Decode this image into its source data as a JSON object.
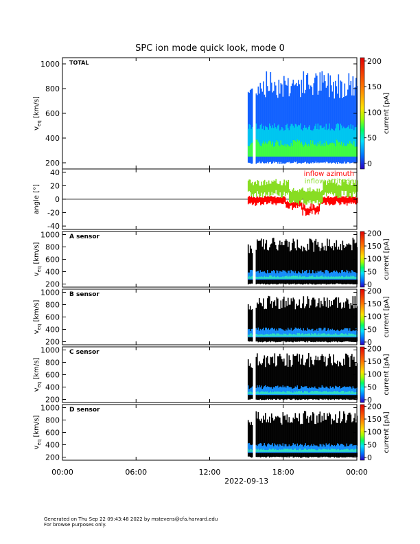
{
  "chart_data": {
    "type": "heatmap",
    "title": "SPC ion mode quick look, mode 0",
    "x_ticks": [
      "00:00",
      "06:00",
      "12:00",
      "18:00",
      "00:00"
    ],
    "x_hours": [
      0,
      6,
      12,
      18,
      24
    ],
    "xlabel": "2022-09-13",
    "data_start_hour": 15.1,
    "data_gap_hours": [
      15.45,
      15.75
    ],
    "vel_ylabel": "v_eq [km/s]",
    "vel_ylabel_main": "v",
    "vel_ylabel_sub": "eq",
    "vel_ylabel_unit": "[km/s]",
    "colorbar_label": "current [pA]",
    "colorbar_range": [
      0,
      200
    ],
    "panels": [
      {
        "label": "TOTAL",
        "ylim": [
          150,
          1050
        ],
        "yticks": [
          200,
          400,
          600,
          800,
          1000
        ],
        "cbar_ticks": [
          0,
          50,
          100,
          150,
          200
        ],
        "background": "blue"
      },
      {
        "label": "A sensor",
        "ylim": [
          150,
          1050
        ],
        "yticks": [
          200,
          400,
          600,
          800,
          1000
        ],
        "cbar_ticks": [
          0,
          50,
          100,
          150,
          200
        ],
        "background": "black"
      },
      {
        "label": "B sensor",
        "ylim": [
          150,
          1050
        ],
        "yticks": [
          200,
          400,
          600,
          800,
          1000
        ],
        "cbar_ticks": [
          0,
          50,
          100,
          150,
          200
        ],
        "background": "black"
      },
      {
        "label": "C sensor",
        "ylim": [
          150,
          1050
        ],
        "yticks": [
          200,
          400,
          600,
          800,
          1000
        ],
        "cbar_ticks": [
          0,
          50,
          100,
          150,
          200
        ],
        "background": "black"
      },
      {
        "label": "D sensor",
        "ylim": [
          150,
          1050
        ],
        "yticks": [
          200,
          400,
          600,
          800,
          1000
        ],
        "cbar_ticks": [
          0,
          50,
          100,
          150,
          200
        ],
        "background": "black"
      }
    ],
    "angle_panel": {
      "ylabel": "angle [°]",
      "ylim": [
        -45,
        45
      ],
      "yticks": [
        -40,
        -20,
        0,
        20,
        40
      ],
      "series": [
        {
          "name": "inflow azimuth",
          "color": "#ff0000"
        },
        {
          "name": "inflow attitude",
          "color": "#88dd22"
        }
      ]
    }
  },
  "footer": {
    "line1": "Generated on Thu Sep 22 09:43:48 2022 by mstevens@cfa.harvard.edu",
    "line2": "For browse purposes only."
  }
}
